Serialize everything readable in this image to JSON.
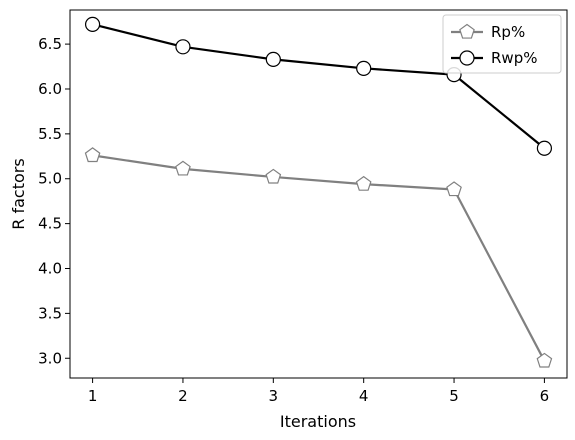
{
  "chart_data": {
    "type": "line",
    "title": "",
    "xlabel": "Iterations",
    "ylabel": "R factors",
    "x": [
      1,
      2,
      3,
      4,
      5,
      6
    ],
    "xticks": [
      "1",
      "2",
      "3",
      "4",
      "5",
      "6"
    ],
    "xlim": [
      0.75,
      6.25
    ],
    "ylim": [
      2.78,
      6.88
    ],
    "yticks": [
      "3.0",
      "3.5",
      "4.0",
      "4.5",
      "5.0",
      "5.5",
      "6.0",
      "6.5"
    ],
    "grid": false,
    "legend_position": "top-right",
    "series": [
      {
        "name": "Rp%",
        "values": [
          5.26,
          5.11,
          5.02,
          4.94,
          4.88,
          2.97
        ],
        "color": "#808080",
        "marker": "pentagon"
      },
      {
        "name": "Rwp%",
        "values": [
          6.72,
          6.47,
          6.33,
          6.23,
          6.16,
          5.34
        ],
        "color": "#000000",
        "marker": "circle"
      }
    ]
  }
}
